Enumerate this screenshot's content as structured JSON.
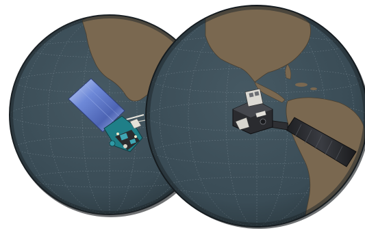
{
  "scene": {
    "subject": "two-satellites-over-globes"
  },
  "colors": {
    "ocean": "#3b4d57",
    "ocean_shade": "#33444d",
    "land": "#7a6850",
    "land_edge": "#4a3f30",
    "limb": "#1c2328",
    "grid": "#8896a0",
    "panel_blue": "#6f86c9",
    "panel_dark": "#26282c",
    "bus_teal": "#1f7f88",
    "bus_dark": "#2a2b2e"
  },
  "globes": [
    {
      "id": "west-globe",
      "satellite": "blue-panel-satellite"
    },
    {
      "id": "east-globe",
      "satellite": "dark-panel-satellite"
    }
  ]
}
